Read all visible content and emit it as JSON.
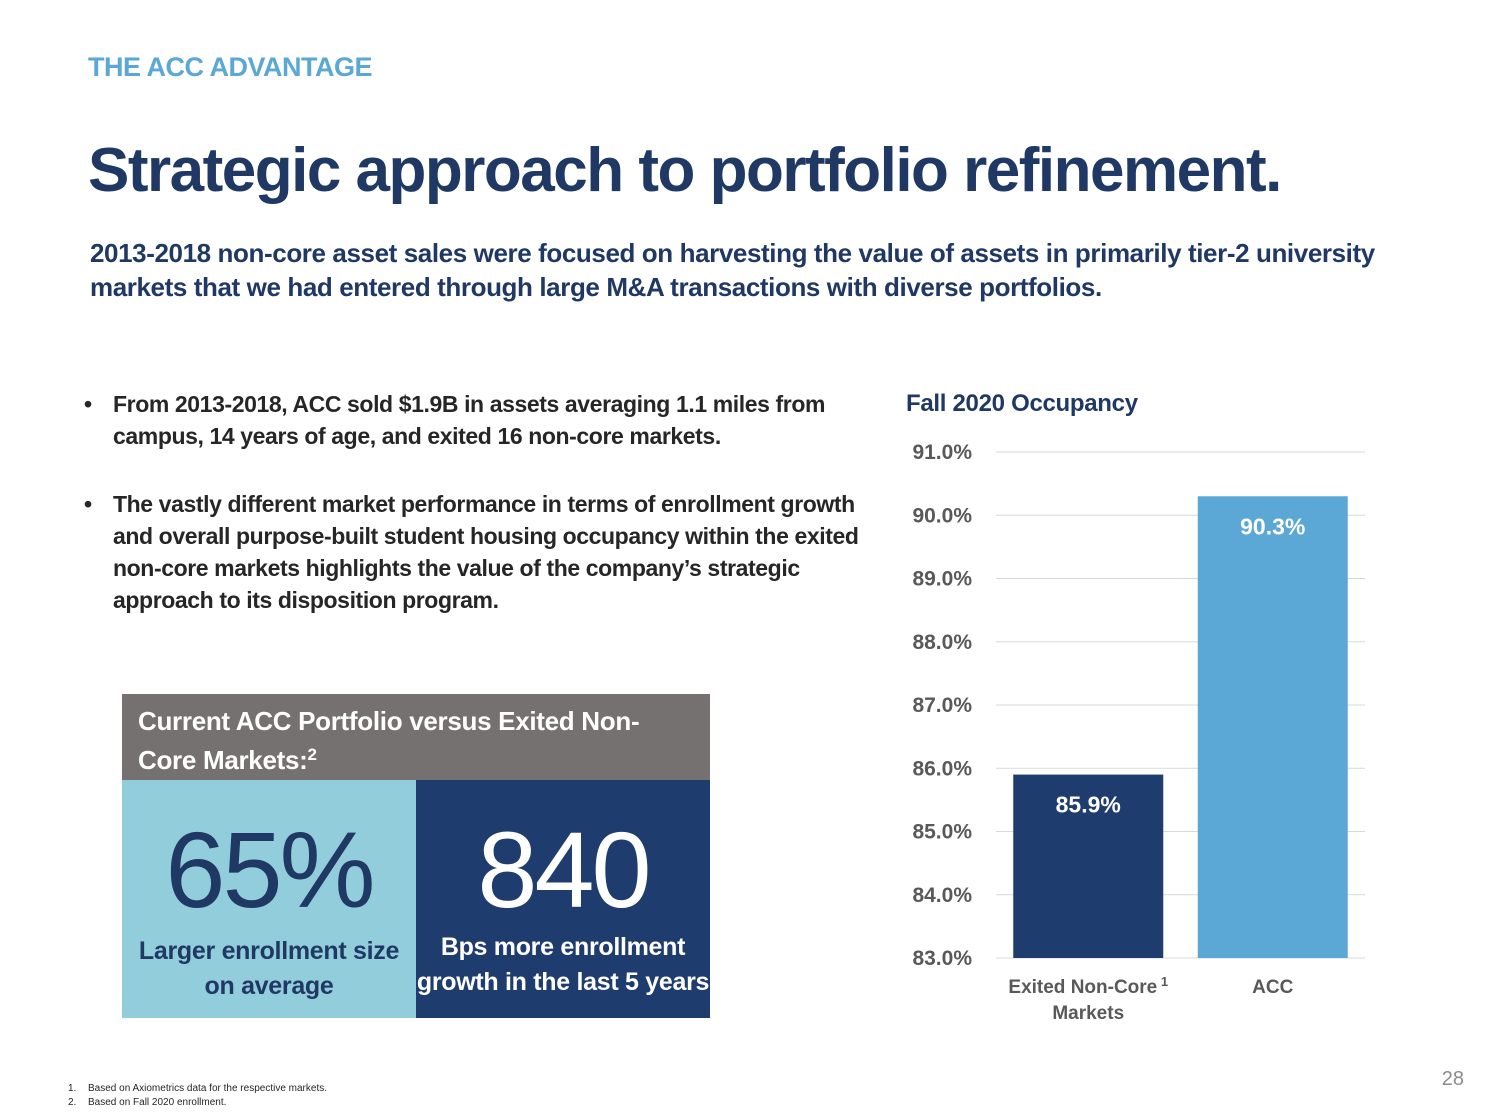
{
  "colors": {
    "eyebrow": "#5BA7D6",
    "title_navy": "#1F3864",
    "panel_header_gray": "#767171",
    "light_teal": "#92CDDC",
    "navy": "#1F3C6E",
    "acc_blue": "#5BA7D6",
    "gridline": "#D9D9D9"
  },
  "header": {
    "eyebrow": "THE ACC ADVANTAGE",
    "title": "Strategic approach to portfolio refinement.",
    "subtitle": "2013-2018 non-core asset sales were focused on harvesting the value of assets in primarily tier-2 university markets that we had entered through large M&A transactions with diverse portfolios."
  },
  "bullets": [
    {
      "marker": "•",
      "text": "From 2013-2018, ACC sold $1.9B in assets averaging 1.1 miles from campus, 14 years of age, and exited 16 non-core markets."
    },
    {
      "marker": "•",
      "text": "The vastly different market performance in terms of enrollment growth and overall purpose-built student housing occupancy within the exited non-core markets highlights the value of the company’s strategic approach to its disposition program."
    }
  ],
  "panel": {
    "header": "Current ACC Portfolio versus Exited Non-Core Markets:",
    "header_sup": "2",
    "stats": [
      {
        "value": "65%",
        "label": "Larger enrollment size on average"
      },
      {
        "value": "840",
        "label": "Bps more enrollment growth in the last 5 years"
      }
    ]
  },
  "chart_data": {
    "type": "bar",
    "title": "Fall 2020 Occupancy",
    "categories": [
      "Exited Non-Core Markets",
      "ACC"
    ],
    "category_lines": [
      [
        "Exited Non-Core",
        "Markets"
      ],
      [
        "ACC"
      ]
    ],
    "category_sup": [
      "1",
      ""
    ],
    "values": [
      85.9,
      90.3
    ],
    "data_labels": [
      "85.9%",
      "90.3%"
    ],
    "bar_colors": [
      "#1F3C6E",
      "#5BA7D6"
    ],
    "ylim": [
      83.0,
      91.0
    ],
    "yticks": [
      83.0,
      84.0,
      85.0,
      86.0,
      87.0,
      88.0,
      89.0,
      90.0,
      91.0
    ],
    "ytick_labels": [
      "83.0%",
      "84.0%",
      "85.0%",
      "86.0%",
      "87.0%",
      "88.0%",
      "89.0%",
      "90.0%",
      "91.0%"
    ],
    "grid": true,
    "legend": "none"
  },
  "footnotes": [
    {
      "num": "1.",
      "text": "Based on Axiometrics data for the respective markets."
    },
    {
      "num": "2.",
      "text": "Based on Fall 2020 enrollment."
    }
  ],
  "page_number": "28"
}
